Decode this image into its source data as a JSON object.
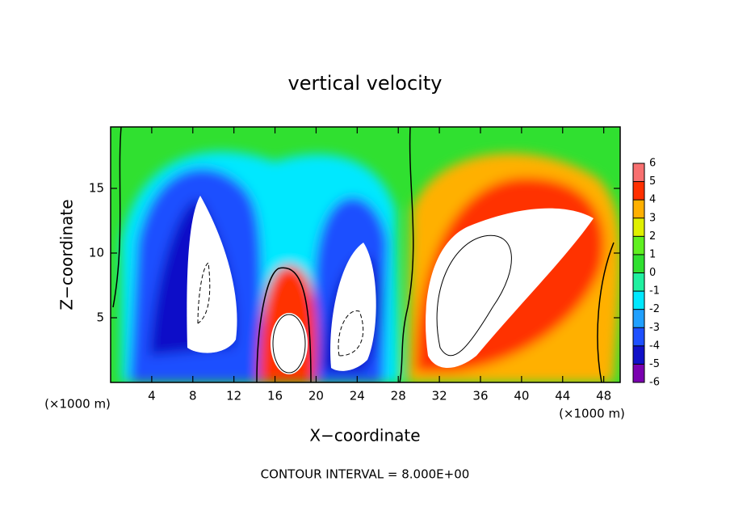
{
  "chart_data": {
    "type": "contour",
    "title": "vertical velocity",
    "xlabel": "X−coordinate",
    "ylabel": "Z−coordinate",
    "xunit": "(×1000 m)",
    "yunit": "(×1000 m)",
    "annotation": "CONTOUR INTERVAL = 8.000E+00",
    "xlim": [
      0,
      49.6
    ],
    "ylim": [
      0,
      19.75
    ],
    "xticks": [
      4,
      8,
      12,
      16,
      20,
      24,
      28,
      32,
      36,
      40,
      44,
      48
    ],
    "yticks": [
      5,
      10,
      15
    ],
    "colorbar": {
      "ticks": [
        -6,
        -5,
        -4,
        -3,
        -2,
        -1,
        0,
        1,
        2,
        3,
        4,
        5,
        6
      ],
      "colors": [
        "#7a00b0",
        "#1010c8",
        "#1e50ff",
        "#20a0ff",
        "#00e8ff",
        "#20f0a0",
        "#30e030",
        "#60f020",
        "#e0f000",
        "#ffb000",
        "#ff3000",
        "#f87070"
      ]
    }
  }
}
